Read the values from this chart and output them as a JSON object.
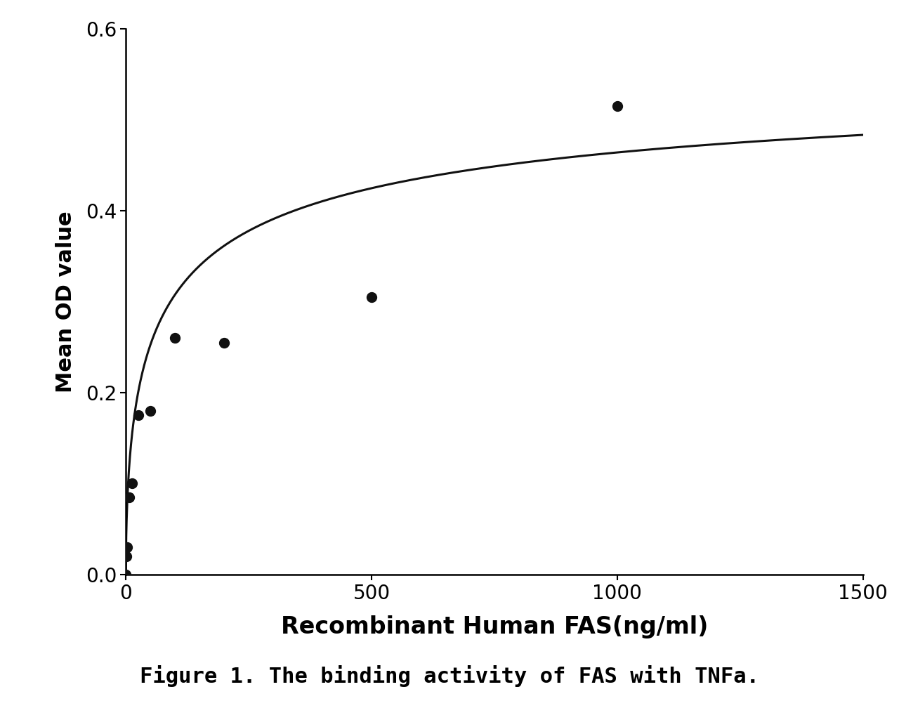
{
  "scatter_x": [
    0,
    1.563,
    3.125,
    6.25,
    12.5,
    25,
    50,
    100,
    200,
    500,
    1000
  ],
  "scatter_y": [
    0.0,
    0.02,
    0.03,
    0.085,
    0.1,
    0.175,
    0.18,
    0.26,
    0.255,
    0.305,
    0.515
  ],
  "xlim": [
    0,
    1500
  ],
  "ylim": [
    0,
    0.6
  ],
  "xticks": [
    0,
    500,
    1000,
    1500
  ],
  "yticks": [
    0.0,
    0.2,
    0.4,
    0.6
  ],
  "xlabel": "Recombinant Human FAS(ng/ml)",
  "ylabel": "Mean OD value",
  "caption": "Figure 1. The binding activity of FAS with TNFa.",
  "dot_color": "#111111",
  "line_color": "#111111",
  "background_color": "#ffffff",
  "dot_size": 100,
  "xlabel_fontsize": 24,
  "ylabel_fontsize": 22,
  "tick_fontsize": 20,
  "caption_fontsize": 22,
  "curve_vmax": 0.58,
  "curve_km": 80.0,
  "curve_n": 0.55
}
